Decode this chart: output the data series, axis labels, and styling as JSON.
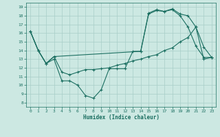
{
  "bg_color": "#cce8e2",
  "line_color": "#1a6e60",
  "grid_color": "#a8cec8",
  "xlabel": "Humidex (Indice chaleur)",
  "xlim": [
    -0.5,
    23.5
  ],
  "ylim": [
    7.5,
    19.5
  ],
  "yticks": [
    8,
    9,
    10,
    11,
    12,
    13,
    14,
    15,
    16,
    17,
    18,
    19
  ],
  "xticks": [
    0,
    1,
    2,
    3,
    4,
    5,
    6,
    7,
    8,
    9,
    10,
    11,
    12,
    13,
    14,
    15,
    16,
    17,
    18,
    19,
    20,
    21,
    22,
    23
  ],
  "line1_x": [
    0,
    1,
    2,
    3,
    4,
    5,
    6,
    7,
    8,
    9,
    10,
    11,
    12,
    13,
    14,
    15,
    16,
    17,
    18,
    19,
    20,
    21,
    22,
    23
  ],
  "line1_y": [
    16.2,
    14.0,
    12.5,
    13.0,
    10.5,
    10.5,
    10.0,
    8.8,
    8.5,
    9.5,
    11.9,
    11.9,
    11.9,
    13.9,
    13.9,
    18.2,
    18.6,
    18.5,
    18.7,
    18.0,
    16.7,
    14.5,
    13.2,
    13.2
  ],
  "line2_x": [
    0,
    1,
    2,
    3,
    4,
    5,
    6,
    7,
    8,
    9,
    10,
    11,
    12,
    13,
    14,
    15,
    16,
    17,
    18,
    19,
    20,
    21,
    22,
    23
  ],
  "line2_y": [
    16.2,
    14.0,
    12.5,
    13.3,
    11.5,
    11.2,
    11.5,
    11.8,
    11.8,
    11.9,
    12.0,
    12.3,
    12.5,
    12.8,
    13.0,
    13.3,
    13.5,
    14.0,
    14.3,
    15.0,
    15.5,
    16.7,
    13.0,
    13.2
  ],
  "line3_x": [
    0,
    1,
    2,
    3,
    14,
    15,
    16,
    17,
    18,
    19,
    20,
    21,
    22,
    23
  ],
  "line3_y": [
    16.2,
    14.0,
    12.5,
    13.3,
    13.9,
    18.3,
    18.7,
    18.5,
    18.8,
    18.2,
    18.0,
    16.7,
    14.4,
    13.2
  ]
}
